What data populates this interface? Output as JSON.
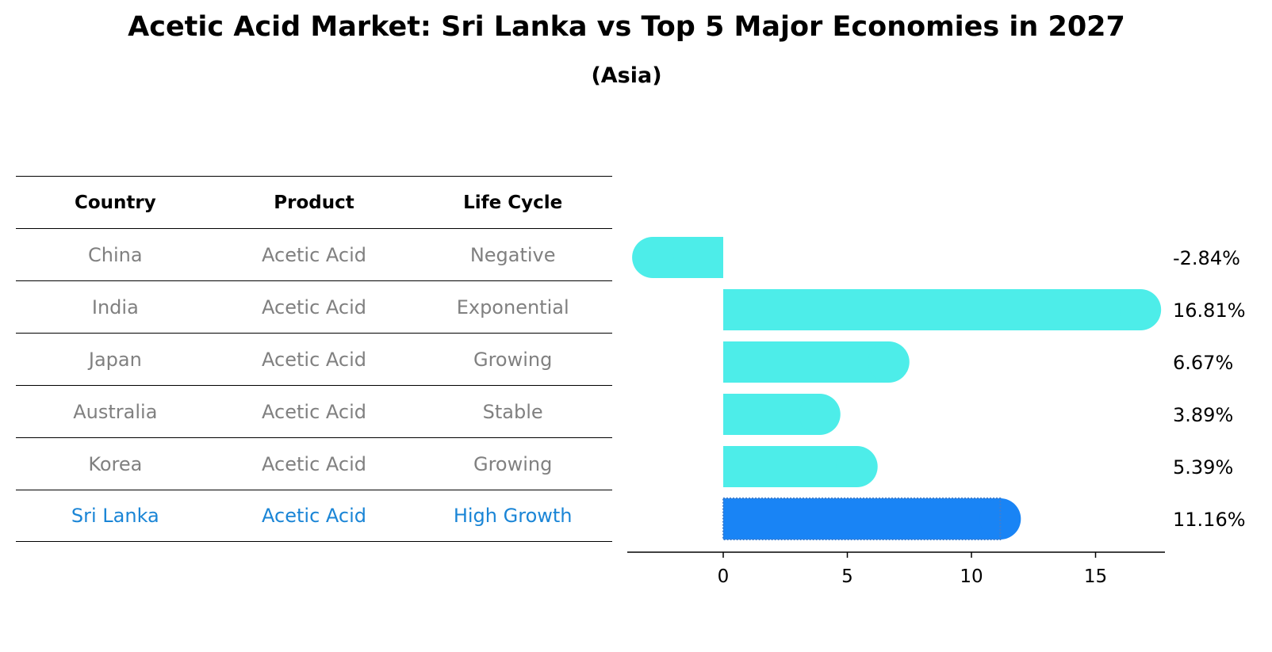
{
  "title": "Acetic Acid Market: Sri Lanka vs Top 5 Major Economies in 2027",
  "subtitle": "(Asia)",
  "table": {
    "headers": [
      "Country",
      "Product",
      "Life Cycle"
    ],
    "rows": [
      [
        "China",
        "Acetic Acid",
        "Negative"
      ],
      [
        "India",
        "Acetic Acid",
        "Exponential"
      ],
      [
        "Japan",
        "Acetic Acid",
        "Growing"
      ],
      [
        "Australia",
        "Acetic Acid",
        "Stable"
      ],
      [
        "Korea",
        "Acetic Acid",
        "Growing"
      ],
      [
        "Sri Lanka",
        "Acetic Acid",
        "High Growth"
      ]
    ],
    "highlight_row": 5
  },
  "colors": {
    "bar": "#4dede9",
    "highlight": "#1984f5",
    "text_gray": "#808080",
    "text_highlight": "#1a85d6"
  },
  "chart_data": {
    "type": "bar",
    "orientation": "horizontal",
    "categories": [
      "China",
      "India",
      "Japan",
      "Australia",
      "Korea",
      "Sri Lanka"
    ],
    "values": [
      -2.84,
      16.81,
      6.67,
      3.89,
      5.39,
      11.16
    ],
    "value_labels": [
      "-2.84%",
      "16.81%",
      "6.67%",
      "3.89%",
      "5.39%",
      "11.16%"
    ],
    "highlight_index": 5,
    "xlim": [
      -3.8,
      17.8
    ],
    "xticks": [
      0,
      5,
      10,
      15
    ],
    "xlabel": "",
    "ylabel": "",
    "grid": false
  }
}
